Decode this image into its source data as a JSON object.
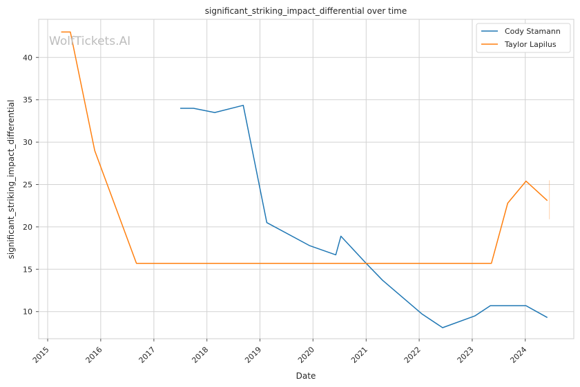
{
  "chart_data": {
    "type": "line",
    "title": "significant_striking_impact_differential over time",
    "xlabel": "Date",
    "ylabel": "significant_striking_impact_differential",
    "watermark": "WolfTickets.AI",
    "x_ticks": [
      "2015",
      "2016",
      "2017",
      "2018",
      "2019",
      "2020",
      "2021",
      "2022",
      "2023",
      "2024"
    ],
    "y_ticks": [
      10,
      15,
      20,
      25,
      30,
      35,
      40
    ],
    "xlim": [
      "2014-10-31",
      "2024-11-30"
    ],
    "ylim": [
      6.8,
      44.5
    ],
    "grid": true,
    "legend_position": "top-right",
    "series": [
      {
        "name": "Cody Stamann",
        "color": "#1f77b4",
        "points": [
          [
            "2017-07-01",
            34.0
          ],
          [
            "2017-10-01",
            34.0
          ],
          [
            "2018-02-24",
            33.5
          ],
          [
            "2018-09-08",
            34.35
          ],
          [
            "2019-02-17",
            20.5
          ],
          [
            "2019-12-07",
            17.8
          ],
          [
            "2020-06-06",
            16.7
          ],
          [
            "2020-07-11",
            18.9
          ],
          [
            "2021-01-01",
            15.7
          ],
          [
            "2021-04-24",
            13.7
          ],
          [
            "2022-01-22",
            9.7
          ],
          [
            "2022-06-11",
            8.1
          ],
          [
            "2023-01-21",
            9.5
          ],
          [
            "2023-05-06",
            10.7
          ],
          [
            "2024-01-06",
            10.7
          ],
          [
            "2024-06-01",
            9.3
          ]
        ]
      },
      {
        "name": "Taylor Lapilus",
        "color": "#ff7f0e",
        "points": [
          [
            "2015-04-04",
            43.0
          ],
          [
            "2015-06-06",
            43.0
          ],
          [
            "2015-11-21",
            29.0
          ],
          [
            "2016-09-03",
            15.7
          ],
          [
            "2023-05-13",
            15.7
          ],
          [
            "2023-09-02",
            22.8
          ],
          [
            "2024-01-06",
            25.4
          ],
          [
            "2024-06-01",
            23.1
          ]
        ],
        "error_band": {
          "x": "2024-06-15",
          "y_low": 20.9,
          "y_high": 25.5
        }
      }
    ]
  }
}
